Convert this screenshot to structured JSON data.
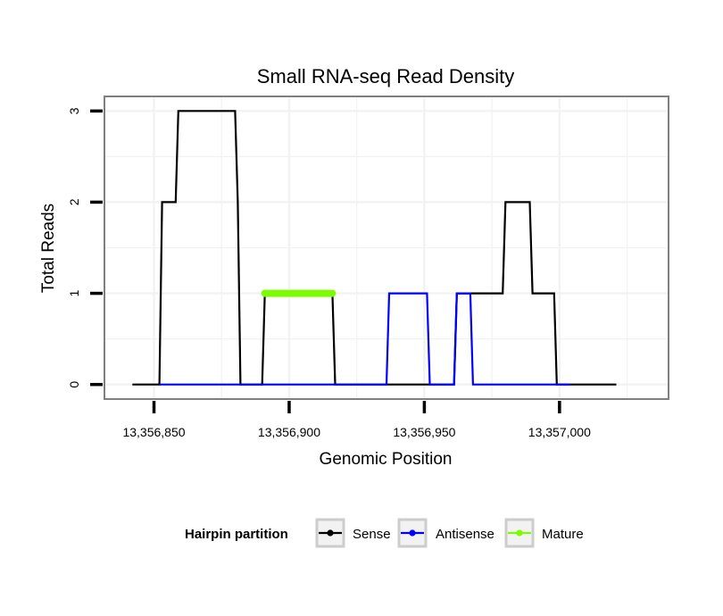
{
  "chart_data": {
    "type": "line",
    "title": "Small RNA-seq Read Density",
    "xlabel": "Genomic Position",
    "ylabel": "Total Reads",
    "xlim": [
      13356832,
      13357040
    ],
    "ylim": [
      -0.15,
      3.15
    ],
    "x_ticks": [
      13356850,
      13356900,
      13356950,
      13357000
    ],
    "x_tick_labels": [
      "13,356,850",
      "13,356,900",
      "13,356,950",
      "13,357,000"
    ],
    "y_ticks": [
      0,
      1,
      2,
      3
    ],
    "y_tick_labels": [
      "0",
      "1",
      "2",
      "3"
    ],
    "grid": true,
    "legend": {
      "title": "Hairpin partition",
      "position": "bottom",
      "entries": [
        "Sense",
        "Antisense",
        "Mature"
      ]
    },
    "series": [
      {
        "name": "Sense",
        "color": "#000000",
        "x": [
          13356842,
          13356852,
          13356853,
          13356858,
          13356859,
          13356880,
          13356881,
          13356882,
          13356890,
          13356891,
          13356916,
          13356917,
          13356961,
          13356962,
          13356979,
          13356980,
          13356989,
          13356990,
          13356998,
          13356999,
          13357014,
          13357015,
          13357021
        ],
        "y": [
          0,
          0,
          2,
          2,
          3,
          3,
          2,
          0,
          0,
          1,
          1,
          0,
          0,
          1,
          1,
          2,
          2,
          1,
          1,
          0,
          0,
          0,
          0
        ]
      },
      {
        "name": "Antisense",
        "color": "#0000ff",
        "x": [
          13356852,
          13356936,
          13356937,
          13356951,
          13356952,
          13356961,
          13356962,
          13356967,
          13356968,
          13357004
        ],
        "y": [
          0,
          0,
          1,
          1,
          0,
          0,
          1,
          1,
          0,
          0
        ]
      },
      {
        "name": "Mature",
        "color": "#7cfc00",
        "x": [
          13356891,
          13356916
        ],
        "y": [
          1,
          1
        ]
      }
    ]
  }
}
